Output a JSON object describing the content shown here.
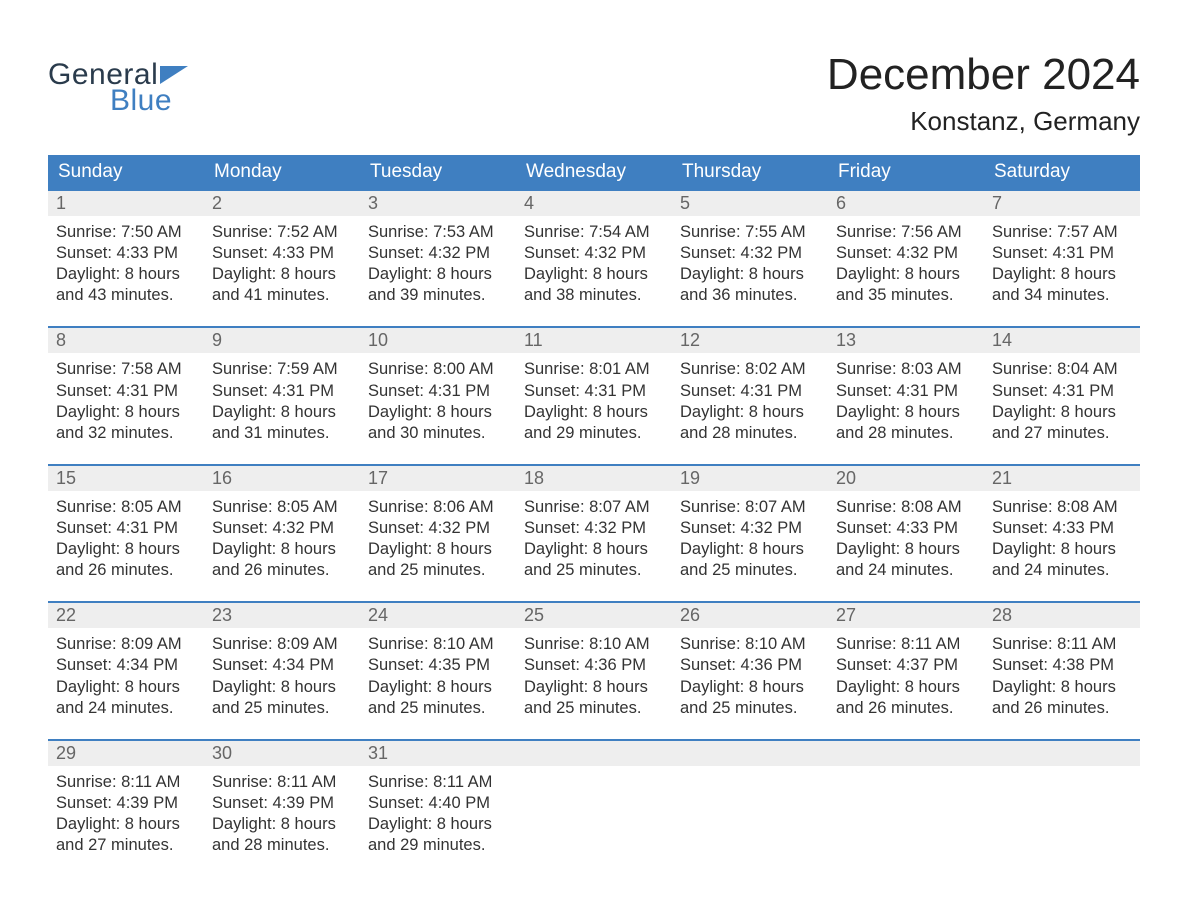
{
  "brand": {
    "word1": "General",
    "word2": "Blue"
  },
  "title": "December 2024",
  "location": "Konstanz, Germany",
  "colors": {
    "header_bg": "#3f7fc1",
    "header_text": "#ffffff",
    "week_border": "#3f7fc1",
    "daynum_bg": "#eeeeee",
    "daynum_text": "#666666",
    "body_text": "#333333",
    "page_bg": "#ffffff",
    "logo_word1": "#2a3b4c",
    "logo_word2": "#3f7fc1"
  },
  "typography": {
    "title_fontsize": 44,
    "location_fontsize": 26,
    "dayheader_fontsize": 19,
    "daynum_fontsize": 18,
    "details_fontsize": 16.5,
    "font_family": "Arial"
  },
  "day_names": [
    "Sunday",
    "Monday",
    "Tuesday",
    "Wednesday",
    "Thursday",
    "Friday",
    "Saturday"
  ],
  "weeks": [
    [
      {
        "n": "1",
        "sunrise": "Sunrise: 7:50 AM",
        "sunset": "Sunset: 4:33 PM",
        "day1": "Daylight: 8 hours",
        "day2": "and 43 minutes."
      },
      {
        "n": "2",
        "sunrise": "Sunrise: 7:52 AM",
        "sunset": "Sunset: 4:33 PM",
        "day1": "Daylight: 8 hours",
        "day2": "and 41 minutes."
      },
      {
        "n": "3",
        "sunrise": "Sunrise: 7:53 AM",
        "sunset": "Sunset: 4:32 PM",
        "day1": "Daylight: 8 hours",
        "day2": "and 39 minutes."
      },
      {
        "n": "4",
        "sunrise": "Sunrise: 7:54 AM",
        "sunset": "Sunset: 4:32 PM",
        "day1": "Daylight: 8 hours",
        "day2": "and 38 minutes."
      },
      {
        "n": "5",
        "sunrise": "Sunrise: 7:55 AM",
        "sunset": "Sunset: 4:32 PM",
        "day1": "Daylight: 8 hours",
        "day2": "and 36 minutes."
      },
      {
        "n": "6",
        "sunrise": "Sunrise: 7:56 AM",
        "sunset": "Sunset: 4:32 PM",
        "day1": "Daylight: 8 hours",
        "day2": "and 35 minutes."
      },
      {
        "n": "7",
        "sunrise": "Sunrise: 7:57 AM",
        "sunset": "Sunset: 4:31 PM",
        "day1": "Daylight: 8 hours",
        "day2": "and 34 minutes."
      }
    ],
    [
      {
        "n": "8",
        "sunrise": "Sunrise: 7:58 AM",
        "sunset": "Sunset: 4:31 PM",
        "day1": "Daylight: 8 hours",
        "day2": "and 32 minutes."
      },
      {
        "n": "9",
        "sunrise": "Sunrise: 7:59 AM",
        "sunset": "Sunset: 4:31 PM",
        "day1": "Daylight: 8 hours",
        "day2": "and 31 minutes."
      },
      {
        "n": "10",
        "sunrise": "Sunrise: 8:00 AM",
        "sunset": "Sunset: 4:31 PM",
        "day1": "Daylight: 8 hours",
        "day2": "and 30 minutes."
      },
      {
        "n": "11",
        "sunrise": "Sunrise: 8:01 AM",
        "sunset": "Sunset: 4:31 PM",
        "day1": "Daylight: 8 hours",
        "day2": "and 29 minutes."
      },
      {
        "n": "12",
        "sunrise": "Sunrise: 8:02 AM",
        "sunset": "Sunset: 4:31 PM",
        "day1": "Daylight: 8 hours",
        "day2": "and 28 minutes."
      },
      {
        "n": "13",
        "sunrise": "Sunrise: 8:03 AM",
        "sunset": "Sunset: 4:31 PM",
        "day1": "Daylight: 8 hours",
        "day2": "and 28 minutes."
      },
      {
        "n": "14",
        "sunrise": "Sunrise: 8:04 AM",
        "sunset": "Sunset: 4:31 PM",
        "day1": "Daylight: 8 hours",
        "day2": "and 27 minutes."
      }
    ],
    [
      {
        "n": "15",
        "sunrise": "Sunrise: 8:05 AM",
        "sunset": "Sunset: 4:31 PM",
        "day1": "Daylight: 8 hours",
        "day2": "and 26 minutes."
      },
      {
        "n": "16",
        "sunrise": "Sunrise: 8:05 AM",
        "sunset": "Sunset: 4:32 PM",
        "day1": "Daylight: 8 hours",
        "day2": "and 26 minutes."
      },
      {
        "n": "17",
        "sunrise": "Sunrise: 8:06 AM",
        "sunset": "Sunset: 4:32 PM",
        "day1": "Daylight: 8 hours",
        "day2": "and 25 minutes."
      },
      {
        "n": "18",
        "sunrise": "Sunrise: 8:07 AM",
        "sunset": "Sunset: 4:32 PM",
        "day1": "Daylight: 8 hours",
        "day2": "and 25 minutes."
      },
      {
        "n": "19",
        "sunrise": "Sunrise: 8:07 AM",
        "sunset": "Sunset: 4:32 PM",
        "day1": "Daylight: 8 hours",
        "day2": "and 25 minutes."
      },
      {
        "n": "20",
        "sunrise": "Sunrise: 8:08 AM",
        "sunset": "Sunset: 4:33 PM",
        "day1": "Daylight: 8 hours",
        "day2": "and 24 minutes."
      },
      {
        "n": "21",
        "sunrise": "Sunrise: 8:08 AM",
        "sunset": "Sunset: 4:33 PM",
        "day1": "Daylight: 8 hours",
        "day2": "and 24 minutes."
      }
    ],
    [
      {
        "n": "22",
        "sunrise": "Sunrise: 8:09 AM",
        "sunset": "Sunset: 4:34 PM",
        "day1": "Daylight: 8 hours",
        "day2": "and 24 minutes."
      },
      {
        "n": "23",
        "sunrise": "Sunrise: 8:09 AM",
        "sunset": "Sunset: 4:34 PM",
        "day1": "Daylight: 8 hours",
        "day2": "and 25 minutes."
      },
      {
        "n": "24",
        "sunrise": "Sunrise: 8:10 AM",
        "sunset": "Sunset: 4:35 PM",
        "day1": "Daylight: 8 hours",
        "day2": "and 25 minutes."
      },
      {
        "n": "25",
        "sunrise": "Sunrise: 8:10 AM",
        "sunset": "Sunset: 4:36 PM",
        "day1": "Daylight: 8 hours",
        "day2": "and 25 minutes."
      },
      {
        "n": "26",
        "sunrise": "Sunrise: 8:10 AM",
        "sunset": "Sunset: 4:36 PM",
        "day1": "Daylight: 8 hours",
        "day2": "and 25 minutes."
      },
      {
        "n": "27",
        "sunrise": "Sunrise: 8:11 AM",
        "sunset": "Sunset: 4:37 PM",
        "day1": "Daylight: 8 hours",
        "day2": "and 26 minutes."
      },
      {
        "n": "28",
        "sunrise": "Sunrise: 8:11 AM",
        "sunset": "Sunset: 4:38 PM",
        "day1": "Daylight: 8 hours",
        "day2": "and 26 minutes."
      }
    ],
    [
      {
        "n": "29",
        "sunrise": "Sunrise: 8:11 AM",
        "sunset": "Sunset: 4:39 PM",
        "day1": "Daylight: 8 hours",
        "day2": "and 27 minutes."
      },
      {
        "n": "30",
        "sunrise": "Sunrise: 8:11 AM",
        "sunset": "Sunset: 4:39 PM",
        "day1": "Daylight: 8 hours",
        "day2": "and 28 minutes."
      },
      {
        "n": "31",
        "sunrise": "Sunrise: 8:11 AM",
        "sunset": "Sunset: 4:40 PM",
        "day1": "Daylight: 8 hours",
        "day2": "and 29 minutes."
      },
      null,
      null,
      null,
      null
    ]
  ]
}
